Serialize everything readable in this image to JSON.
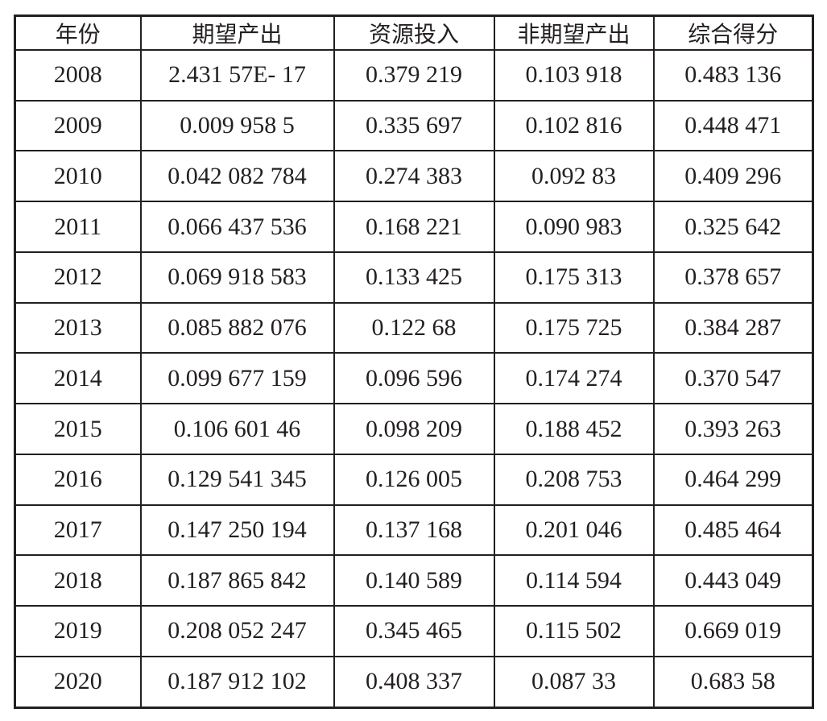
{
  "table": {
    "header": [
      "年份",
      "期望产出",
      "资源投入",
      "非期望产出",
      "综合得分"
    ],
    "rows": [
      [
        "2008",
        "2.431 57E- 17",
        "0.379 219",
        "0.103 918",
        "0.483 136"
      ],
      [
        "2009",
        "0.009 958 5",
        "0.335 697",
        "0.102 816",
        "0.448 471"
      ],
      [
        "2010",
        "0.042 082 784",
        "0.274 383",
        "0.092 83",
        "0.409 296"
      ],
      [
        "2011",
        "0.066 437 536",
        "0.168 221",
        "0.090 983",
        "0.325 642"
      ],
      [
        "2012",
        "0.069 918 583",
        "0.133 425",
        "0.175 313",
        "0.378 657"
      ],
      [
        "2013",
        "0.085 882 076",
        "0.122 68",
        "0.175 725",
        "0.384 287"
      ],
      [
        "2014",
        "0.099 677 159",
        "0.096 596",
        "0.174 274",
        "0.370 547"
      ],
      [
        "2015",
        "0.106 601 46",
        "0.098 209",
        "0.188 452",
        "0.393 263"
      ],
      [
        "2016",
        "0.129 541 345",
        "0.126 005",
        "0.208 753",
        "0.464 299"
      ],
      [
        "2017",
        "0.147 250 194",
        "0.137 168",
        "0.201 046",
        "0.485 464"
      ],
      [
        "2018",
        "0.187 865 842",
        "0.140 589",
        "0.114 594",
        "0.443 049"
      ],
      [
        "2019",
        "0.208 052 247",
        "0.345 465",
        "0.115 502",
        "0.669 019"
      ],
      [
        "2020",
        "0.187 912 102",
        "0.408 337",
        "0.087 33",
        "0.683 58"
      ]
    ]
  }
}
